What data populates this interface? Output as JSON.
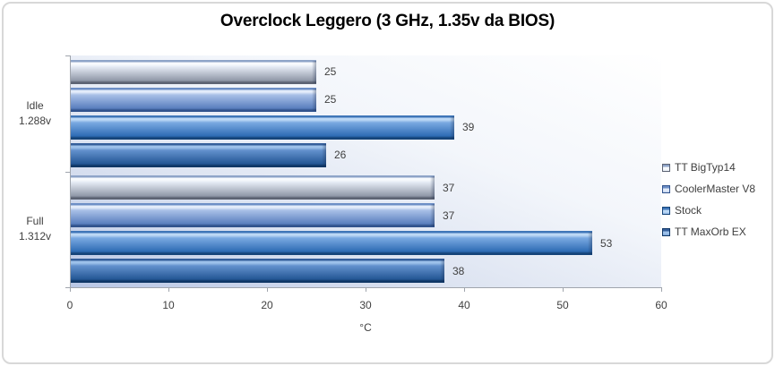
{
  "chart_data": {
    "type": "bar",
    "orientation": "horizontal",
    "title": "Overclock Leggero (3 GHz, 1.35v da BIOS)",
    "categories": [
      {
        "label": "Idle",
        "sublabel": "1.288v"
      },
      {
        "label": "Full",
        "sublabel": "1.312v"
      }
    ],
    "series": [
      {
        "name": "TT BigTyp14",
        "values": [
          25,
          37
        ],
        "color": "#ccd6e8"
      },
      {
        "name": "CoolerMaster V8",
        "values": [
          25,
          37
        ],
        "color": "#84a3d4"
      },
      {
        "name": "Stock",
        "values": [
          39,
          53
        ],
        "color": "#3a76bf"
      },
      {
        "name": "TT MaxOrb EX",
        "values": [
          26,
          38
        ],
        "color": "#2a5d9f"
      }
    ],
    "xlabel": "°C",
    "xlim": [
      0,
      60
    ],
    "xticks": [
      0,
      10,
      20,
      30,
      40,
      50,
      60
    ],
    "legend_position": "right",
    "grid": false,
    "data_labels": true,
    "plot_background": [
      "#ffffff",
      "#b9c7e5"
    ],
    "axis_color": "#a0a5ad",
    "text_color": "#3f3f3f"
  }
}
